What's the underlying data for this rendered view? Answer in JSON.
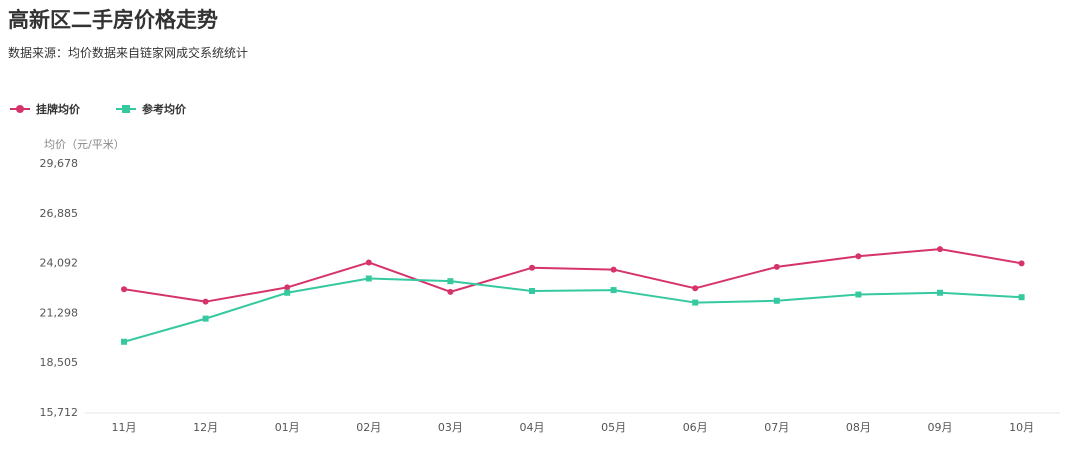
{
  "title": "高新区二手房价格走势",
  "subtitle": "数据来源：均价数据来自链家网成交系统统计",
  "colors": {
    "listing": "#d6336c",
    "reference": "#36c9a0",
    "axis": "#e6e6e6",
    "text": "#333333"
  },
  "chart_data": {
    "type": "line",
    "title": "高新区二手房价格走势",
    "ylabel": "均价（元/平米）",
    "xlabel": "",
    "categories": [
      "11月",
      "12月",
      "01月",
      "02月",
      "03月",
      "04月",
      "05月",
      "06月",
      "07月",
      "08月",
      "09月",
      "10月"
    ],
    "yticks": [
      "15,712",
      "18,505",
      "21,298",
      "24,092",
      "26,885",
      "29,678"
    ],
    "ylim": [
      15712,
      29678
    ],
    "grid": false,
    "legend_position": "top-left",
    "series": [
      {
        "name": "挂牌均价",
        "marker": "circle",
        "color": "#d6336c",
        "values": [
          22600,
          21900,
          22700,
          24100,
          22450,
          23800,
          23700,
          22650,
          23850,
          24450,
          24850,
          24050
        ]
      },
      {
        "name": "参考均价",
        "marker": "square",
        "color": "#36c9a0",
        "values": [
          19650,
          20950,
          22400,
          23200,
          23050,
          22500,
          22550,
          21850,
          21950,
          22300,
          22400,
          22150
        ]
      }
    ]
  }
}
